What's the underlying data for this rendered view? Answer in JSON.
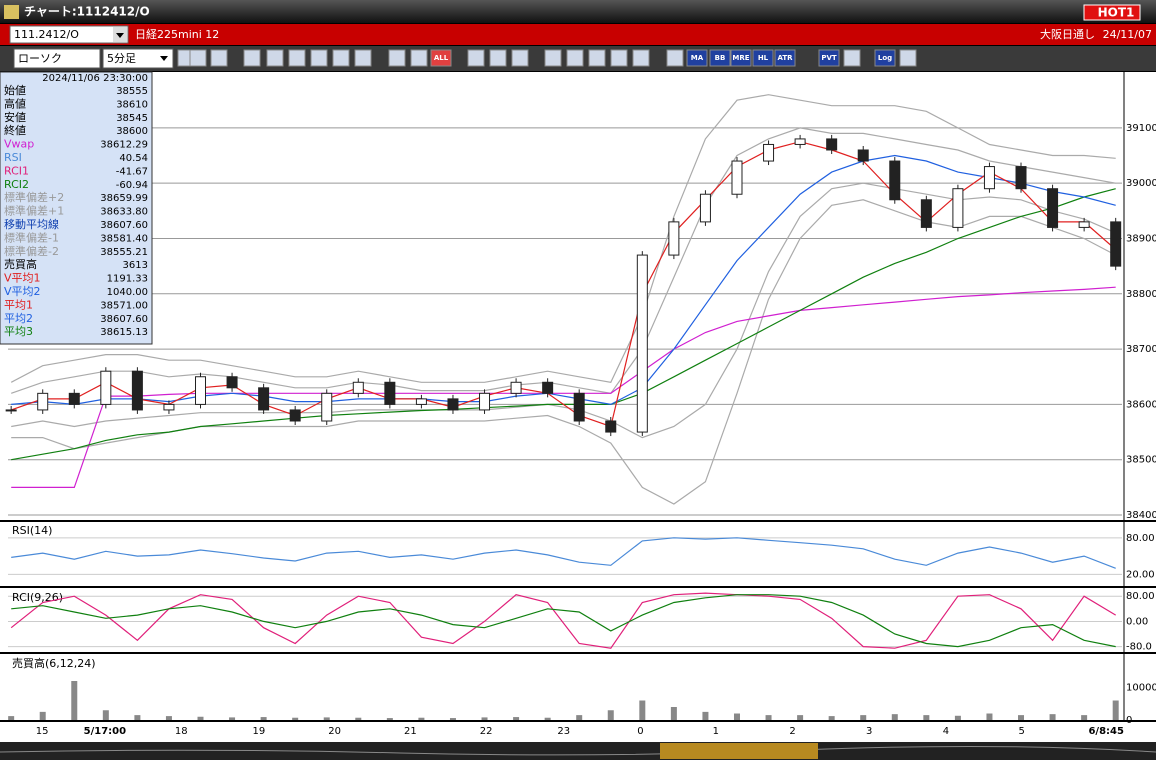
{
  "window": {
    "title": "チャート:1112412/O",
    "badge": "HOT1"
  },
  "toolbar": {
    "symbol": "111.2412/O",
    "name": "日経225mini 12",
    "market": "大阪日通し",
    "date": "24/11/07",
    "chart_style": "ローソク",
    "interval": "5分足",
    "buttons": [
      "ALL",
      "MA",
      "BB",
      "MRE",
      "HL",
      "ATR",
      "PVT",
      "Log"
    ]
  },
  "info_panel": {
    "timestamp": "2024/11/06 23:30:00",
    "rows": [
      [
        "始値",
        "38555"
      ],
      [
        "高値",
        "38610"
      ],
      [
        "安値",
        "38545"
      ],
      [
        "終値",
        "38600"
      ],
      [
        "Vwap",
        "38612.29"
      ],
      [
        "RSI",
        "40.54"
      ],
      [
        "RCI1",
        "-41.67"
      ],
      [
        "RCI2",
        "-60.94"
      ],
      [
        "標準偏差+2",
        "38659.99"
      ],
      [
        "標準偏差+1",
        "38633.80"
      ],
      [
        "移動平均線",
        "38607.60"
      ],
      [
        "標準偏差-1",
        "38581.40"
      ],
      [
        "標準偏差-2",
        "38555.21"
      ],
      [
        "売買高",
        "3613"
      ],
      [
        "V平均1",
        "1191.33"
      ],
      [
        "V平均2",
        "1040.00"
      ],
      [
        "平均1",
        "38571.00"
      ],
      [
        "平均2",
        "38607.60"
      ],
      [
        "平均3",
        "38615.13"
      ]
    ]
  },
  "chart_data": [
    {
      "type": "candlestick",
      "values": [
        38590,
        38620,
        38600,
        38660,
        38590,
        38600,
        38650,
        38630,
        38590,
        38570,
        38620,
        38640,
        38600,
        38610,
        38590,
        38620,
        38640,
        38620,
        38570,
        38550,
        38870,
        38930,
        38980,
        39040,
        39070,
        39080,
        39060,
        39040,
        38970,
        38920,
        38990,
        39030,
        38990,
        38920,
        38930,
        38850
      ],
      "up_color": "#ffffff",
      "down_color": "#222222",
      "series": [
        {
          "color": "#e02020",
          "values": [
            38590,
            38610,
            38610,
            38640,
            38610,
            38600,
            38630,
            38635,
            38600,
            38580,
            38610,
            38630,
            38610,
            38610,
            38595,
            38615,
            38630,
            38620,
            38580,
            38560,
            38800,
            38910,
            38970,
            39030,
            39060,
            39075,
            39060,
            39040,
            38980,
            38930,
            38980,
            39020,
            38990,
            38930,
            38930,
            38880
          ]
        },
        {
          "color": "#2060e0",
          "values": [
            38600,
            38605,
            38600,
            38610,
            38610,
            38605,
            38615,
            38620,
            38615,
            38605,
            38605,
            38610,
            38610,
            38610,
            38605,
            38605,
            38615,
            38620,
            38610,
            38600,
            38630,
            38700,
            38780,
            38860,
            38920,
            38980,
            39020,
            39040,
            39050,
            39040,
            39020,
            39010,
            39000,
            38985,
            38975,
            38960
          ]
        },
        {
          "color": "#108010",
          "values": [
            38500,
            38510,
            38520,
            38535,
            38545,
            38550,
            38560,
            38565,
            38570,
            38575,
            38580,
            38583,
            38586,
            38589,
            38591,
            38594,
            38597,
            38600,
            38600,
            38600,
            38620,
            38650,
            38680,
            38710,
            38740,
            38770,
            38800,
            38830,
            38855,
            38875,
            38900,
            38920,
            38940,
            38955,
            38975,
            38990
          ]
        },
        {
          "color": "#d020d0",
          "values": [
            38450,
            38450,
            38450,
            38615,
            38615,
            38618,
            38620,
            38620,
            38620,
            38620,
            38620,
            38620,
            38620,
            38620,
            38620,
            38620,
            38620,
            38620,
            38620,
            38620,
            38660,
            38700,
            38730,
            38750,
            38760,
            38770,
            38775,
            38780,
            38785,
            38790,
            38795,
            38798,
            38802,
            38805,
            38808,
            38812
          ]
        },
        {
          "color": "#aaaaaa",
          "values": [
            38640,
            38670,
            38680,
            38690,
            38690,
            38680,
            38680,
            38670,
            38660,
            38650,
            38650,
            38660,
            38650,
            38640,
            38640,
            38640,
            38650,
            38660,
            38650,
            38640,
            38760,
            38940,
            39080,
            39150,
            39160,
            39150,
            39140,
            39140,
            39140,
            39130,
            39100,
            39070,
            39060,
            39050,
            39050,
            39045
          ]
        },
        {
          "color": "#aaaaaa",
          "values": [
            38620,
            38640,
            38650,
            38660,
            38660,
            38650,
            38655,
            38650,
            38640,
            38630,
            38630,
            38640,
            38635,
            38625,
            38625,
            38625,
            38635,
            38640,
            38630,
            38620,
            38700,
            38830,
            38960,
            39050,
            39080,
            39100,
            39090,
            39090,
            39080,
            39070,
            39060,
            39040,
            39030,
            39020,
            39010,
            39000
          ]
        },
        {
          "color": "#aaaaaa",
          "values": [
            38560,
            38570,
            38560,
            38570,
            38575,
            38580,
            38585,
            38585,
            38585,
            38585,
            38585,
            38590,
            38590,
            38590,
            38590,
            38590,
            38595,
            38600,
            38590,
            38570,
            38540,
            38560,
            38600,
            38700,
            38840,
            38940,
            38990,
            39000,
            38990,
            38980,
            38970,
            38975,
            38970,
            38950,
            38935,
            38910
          ]
        },
        {
          "color": "#aaaaaa",
          "values": [
            38540,
            38540,
            38520,
            38530,
            38540,
            38550,
            38560,
            38560,
            38560,
            38560,
            38560,
            38570,
            38570,
            38570,
            38570,
            38570,
            38575,
            38580,
            38560,
            38530,
            38450,
            38420,
            38460,
            38620,
            38790,
            38900,
            38960,
            38970,
            38950,
            38930,
            38920,
            38940,
            38940,
            38920,
            38900,
            38870
          ]
        }
      ],
      "ylim": [
        38391,
        39201
      ],
      "yticks": [
        38400,
        38500,
        38600,
        38700,
        38800,
        38900,
        39000,
        39100
      ],
      "grid": true,
      "xlim": [
        -0.1,
        35.2
      ],
      "xticks": [
        {
          "value": 0.98,
          "label": "15"
        },
        {
          "value": 2.97,
          "label": "5/17:00"
        },
        {
          "value": 5.39,
          "label": "18"
        },
        {
          "value": 7.85,
          "label": "19"
        },
        {
          "value": 10.25,
          "label": "20"
        },
        {
          "value": 12.65,
          "label": "21"
        },
        {
          "value": 15.05,
          "label": "22"
        },
        {
          "value": 17.51,
          "label": "23"
        },
        {
          "value": 19.94,
          "label": "0"
        },
        {
          "value": 22.33,
          "label": "1"
        },
        {
          "value": 24.76,
          "label": "2"
        },
        {
          "value": 27.19,
          "label": "3"
        },
        {
          "value": 29.62,
          "label": "4"
        },
        {
          "value": 32.02,
          "label": "5"
        },
        {
          "value": 34.7,
          "label": "6/8:45"
        }
      ]
    },
    {
      "type": "line",
      "title": "RSI(14)",
      "series": [
        {
          "color": "#4a8ad8",
          "values": [
            48,
            55,
            45,
            58,
            50,
            52,
            60,
            54,
            47,
            42,
            55,
            58,
            48,
            52,
            45,
            55,
            60,
            52,
            40,
            35,
            75,
            80,
            78,
            80,
            76,
            72,
            68,
            62,
            45,
            35,
            55,
            65,
            55,
            40,
            50,
            30
          ]
        }
      ],
      "ylim": [
        1,
        106
      ],
      "yticks": [
        {
          "value": 80,
          "label": "80.00"
        },
        {
          "value": 20,
          "label": "20.00"
        }
      ],
      "grid": true
    },
    {
      "type": "line",
      "title": "RCI(9,26)",
      "series": [
        {
          "color": "#e0207a",
          "values": [
            -20,
            60,
            80,
            20,
            -60,
            40,
            85,
            70,
            -20,
            -70,
            20,
            80,
            60,
            -50,
            -70,
            0,
            85,
            60,
            -70,
            -85,
            60,
            85,
            90,
            85,
            80,
            70,
            10,
            -80,
            -85,
            -60,
            80,
            85,
            40,
            -60,
            80,
            20
          ]
        },
        {
          "color": "#108010",
          "values": [
            40,
            50,
            30,
            10,
            20,
            40,
            50,
            30,
            0,
            -20,
            0,
            30,
            40,
            20,
            -10,
            -20,
            10,
            40,
            30,
            -30,
            20,
            60,
            75,
            85,
            85,
            80,
            60,
            20,
            -40,
            -70,
            -80,
            -60,
            -20,
            -10,
            -60,
            -80
          ]
        }
      ],
      "ylim": [
        -97,
        103
      ],
      "yticks": [
        {
          "value": 80,
          "label": "80.00"
        },
        {
          "value": 0,
          "label": "0.00"
        },
        {
          "value": -80,
          "label": "-80.0"
        }
      ],
      "grid": true
    },
    {
      "type": "bar",
      "title": "売買高(6,12,24)",
      "color": "#888888",
      "values": [
        1200,
        2500,
        12000,
        3000,
        1500,
        1200,
        1000,
        800,
        900,
        700,
        800,
        700,
        600,
        700,
        600,
        800,
        900,
        700,
        1500,
        3000,
        6000,
        4000,
        2500,
        2000,
        1500,
        1500,
        1200,
        1500,
        1800,
        1500,
        1300,
        2000,
        1500,
        1800,
        1500,
        6000
      ],
      "ylim": [
        0,
        20000
      ],
      "yticks": [
        10000,
        0
      ],
      "grid": false
    }
  ]
}
